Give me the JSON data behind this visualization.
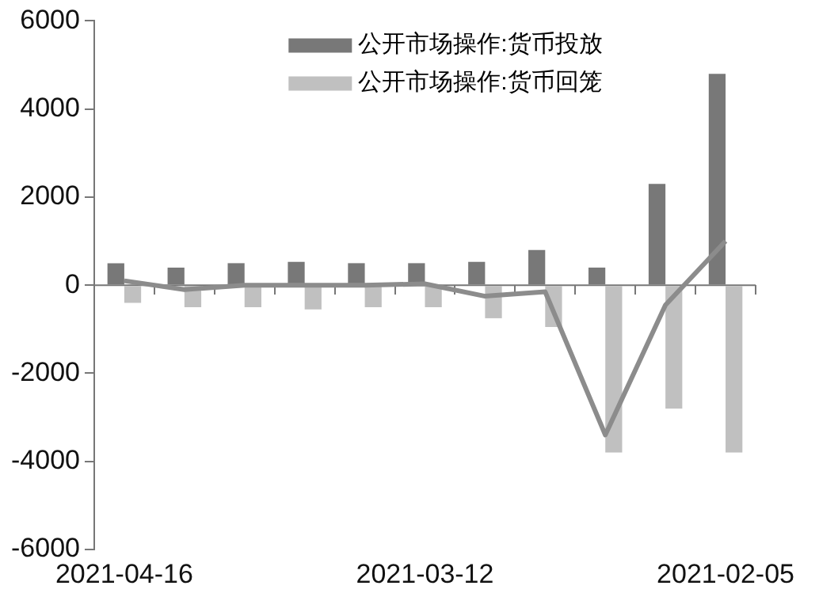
{
  "chart_data": {
    "type": "bar",
    "categories": [
      "2021-04-16",
      null,
      null,
      null,
      null,
      "2021-03-12",
      null,
      null,
      null,
      null,
      "2021-02-05"
    ],
    "series": [
      {
        "name": "公开市场操作:货币投放",
        "color": "#787878",
        "values": [
          500,
          400,
          500,
          530,
          500,
          500,
          530,
          800,
          400,
          2300,
          4800
        ]
      },
      {
        "name": "公开市场操作:货币回笼",
        "color": "#c0c0c0",
        "values": [
          -400,
          -500,
          -500,
          -550,
          -500,
          -500,
          -750,
          -950,
          -3800,
          -2800,
          -3800
        ]
      },
      {
        "type": "line",
        "color": "#8c8c8c",
        "values": [
          100,
          -100,
          0,
          0,
          0,
          30,
          -250,
          -150,
          -3400,
          -450,
          1000
        ]
      }
    ],
    "ylim": [
      -6000,
      6000
    ],
    "yticks": [
      -6000,
      -4000,
      -2000,
      0,
      2000,
      4000,
      6000
    ],
    "ref_lines": [
      {
        "axis": "y",
        "value": 0,
        "color": "#777777"
      }
    ],
    "grid": false,
    "legend": "top",
    "marker": "none",
    "line_style": "solid"
  }
}
